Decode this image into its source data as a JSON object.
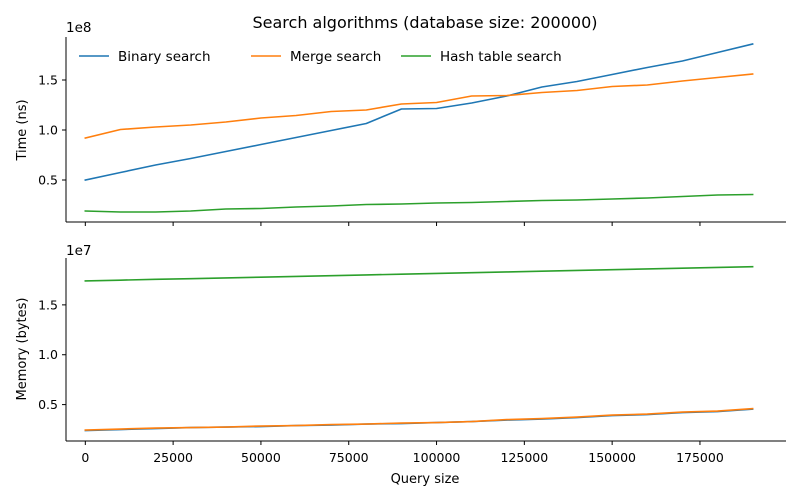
{
  "chart_data": {
    "type": "line",
    "title": "Search algorithms (database size: 200000)",
    "xlabel": "Query size",
    "x": [
      0,
      10000,
      20000,
      30000,
      40000,
      50000,
      60000,
      70000,
      80000,
      90000,
      100000,
      110000,
      120000,
      130000,
      140000,
      150000,
      160000,
      170000,
      180000,
      190000
    ],
    "xlim": [
      -5500,
      199500
    ],
    "xticks": [
      0,
      25000,
      50000,
      75000,
      100000,
      125000,
      150000,
      175000
    ],
    "xtick_labels": [
      "0",
      "25000",
      "50000",
      "75000",
      "100000",
      "125000",
      "150000",
      "175000"
    ],
    "colors": {
      "Binary search": "#1f77b4",
      "Merge search": "#ff7f0e",
      "Hash table search": "#2ca02c"
    },
    "panels": [
      {
        "ylabel": "Time (ns)",
        "offset_text": "1e8",
        "ylim": [
          0.08,
          1.93
        ],
        "yticks": [
          0.5,
          1.0,
          1.5
        ],
        "ytick_labels": [
          "0.5",
          "1.0",
          "1.5"
        ],
        "legend": {
          "position": "top-left",
          "entries": [
            "Binary search",
            "Merge search",
            "Hash table search"
          ]
        },
        "series": [
          {
            "name": "Binary search",
            "values": [
              0.5,
              0.575,
              0.65,
              0.715,
              0.785,
              0.855,
              0.925,
              0.995,
              1.065,
              1.21,
              1.215,
              1.27,
              1.34,
              1.43,
              1.485,
              1.555,
              1.625,
              1.69,
              1.775,
              1.86
            ]
          },
          {
            "name": "Merge search",
            "values": [
              0.92,
              1.005,
              1.03,
              1.05,
              1.08,
              1.12,
              1.145,
              1.185,
              1.2,
              1.26,
              1.275,
              1.34,
              1.345,
              1.375,
              1.395,
              1.435,
              1.45,
              1.49,
              1.525,
              1.56
            ]
          },
          {
            "name": "Hash table search",
            "values": [
              0.19,
              0.18,
              0.18,
              0.19,
              0.21,
              0.215,
              0.23,
              0.24,
              0.255,
              0.26,
              0.27,
              0.275,
              0.285,
              0.295,
              0.3,
              0.31,
              0.32,
              0.335,
              0.35,
              0.355
            ]
          }
        ]
      },
      {
        "ylabel": "Memory (bytes)",
        "offset_text": "1e7",
        "ylim": [
          1.5,
          1.95
        ],
        "yticks": [
          0.5,
          1.0,
          1.5
        ],
        "ytick_labels": [
          "0.5",
          "1.0",
          "1.5"
        ],
        "series": [
          {
            "name": "Hash table search",
            "values": [
              1.74,
              1.748,
              1.756,
              1.763,
              1.77,
              1.778,
              1.785,
              1.793,
              1.8,
              1.808,
              1.815,
              1.823,
              1.83,
              1.838,
              1.845,
              1.853,
              1.86,
              1.868,
              1.875,
              1.883
            ]
          },
          {
            "name": "Binary search",
            "values": [
              0.24,
              0.25,
              0.26,
              0.27,
              0.275,
              0.28,
              0.29,
              0.295,
              0.305,
              0.31,
              0.32,
              0.33,
              0.345,
              0.355,
              0.37,
              0.39,
              0.4,
              0.42,
              0.43,
              0.455
            ]
          },
          {
            "name": "Merge search",
            "values": [
              0.245,
              0.255,
              0.265,
              0.27,
              0.275,
              0.285,
              0.29,
              0.3,
              0.305,
              0.315,
              0.32,
              0.33,
              0.35,
              0.36,
              0.375,
              0.395,
              0.405,
              0.425,
              0.435,
              0.46
            ]
          }
        ]
      }
    ]
  }
}
